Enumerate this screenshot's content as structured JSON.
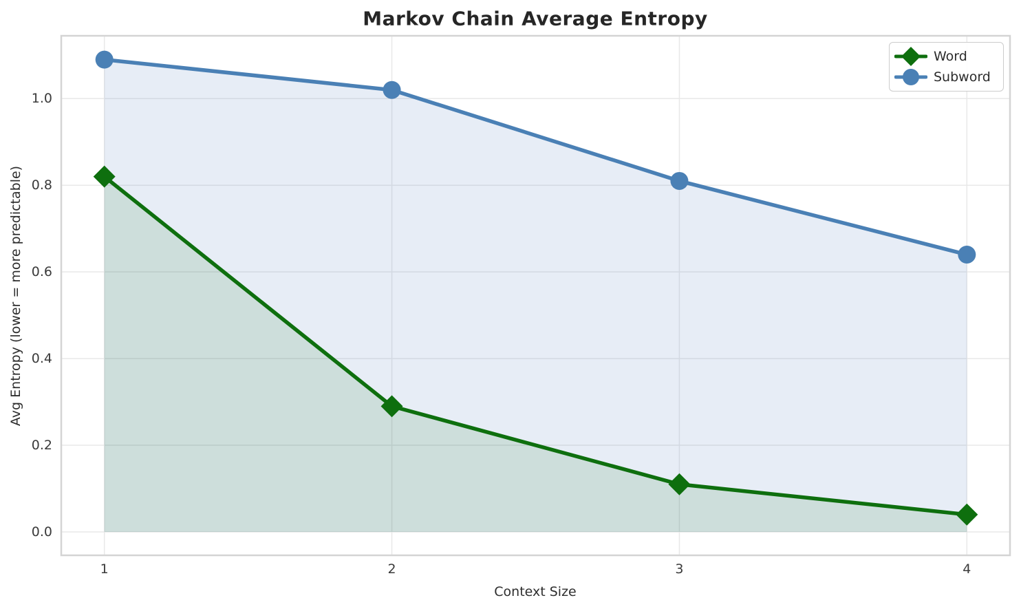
{
  "chart_data": {
    "type": "line",
    "title": "Markov Chain Average Entropy",
    "xlabel": "Context Size",
    "ylabel": "Avg Entropy (lower = more predictable)",
    "x": [
      1,
      2,
      3,
      4
    ],
    "series": [
      {
        "name": "Word",
        "values": [
          0.82,
          0.29,
          0.11,
          0.04
        ],
        "color": "#0e6f0e",
        "fill_color": "rgba(0,100,0,0.11)",
        "marker": "diamond"
      },
      {
        "name": "Subword",
        "values": [
          1.09,
          1.02,
          0.81,
          0.64
        ],
        "color": "#4a80b5",
        "fill_color": "rgba(70,115,185,0.13)",
        "marker": "circle"
      }
    ],
    "xticks": {
      "values": [
        1,
        2,
        3,
        4
      ],
      "labels": [
        "1",
        "2",
        "3",
        "4"
      ]
    },
    "yticks": {
      "values": [
        0.0,
        0.2,
        0.4,
        0.6,
        0.8,
        1.0
      ],
      "labels": [
        "0.0",
        "0.2",
        "0.4",
        "0.6",
        "0.8",
        "1.0"
      ]
    },
    "xlim": [
      0.85,
      4.15
    ],
    "ylim": [
      -0.054,
      1.145
    ],
    "grid": true,
    "area_fill_to_zero": true,
    "legend": {
      "position": "upper right",
      "entries": [
        "Word",
        "Subword"
      ]
    }
  }
}
